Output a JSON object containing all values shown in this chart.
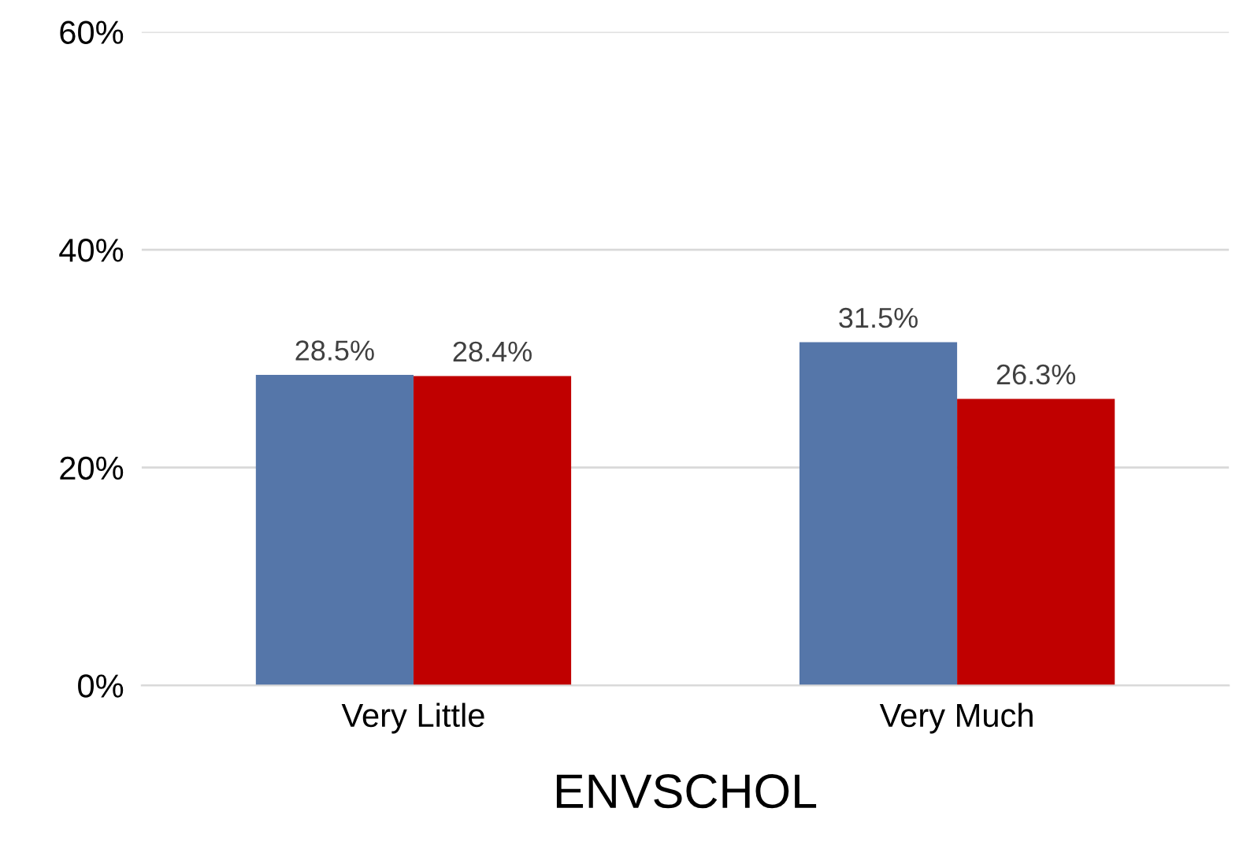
{
  "chart_data": {
    "type": "bar",
    "xlabel": "ENVSCHOL",
    "categories": [
      "Very Little",
      "Very Much"
    ],
    "series": [
      {
        "color": "#5576a9",
        "values": [
          28.5,
          31.5
        ],
        "value_labels": [
          "28.5%",
          "31.5%"
        ]
      },
      {
        "color": "#c00000",
        "values": [
          28.4,
          26.3
        ],
        "value_labels": [
          "28.4%",
          "26.3%"
        ]
      }
    ],
    "ylim": [
      0,
      60
    ],
    "yticks": [
      {
        "value": 0,
        "label": "0%"
      },
      {
        "value": 20,
        "label": "20%"
      },
      {
        "value": 40,
        "label": "40%"
      },
      {
        "value": 60,
        "label": "60%"
      }
    ],
    "grid": "y",
    "legend": false
  }
}
